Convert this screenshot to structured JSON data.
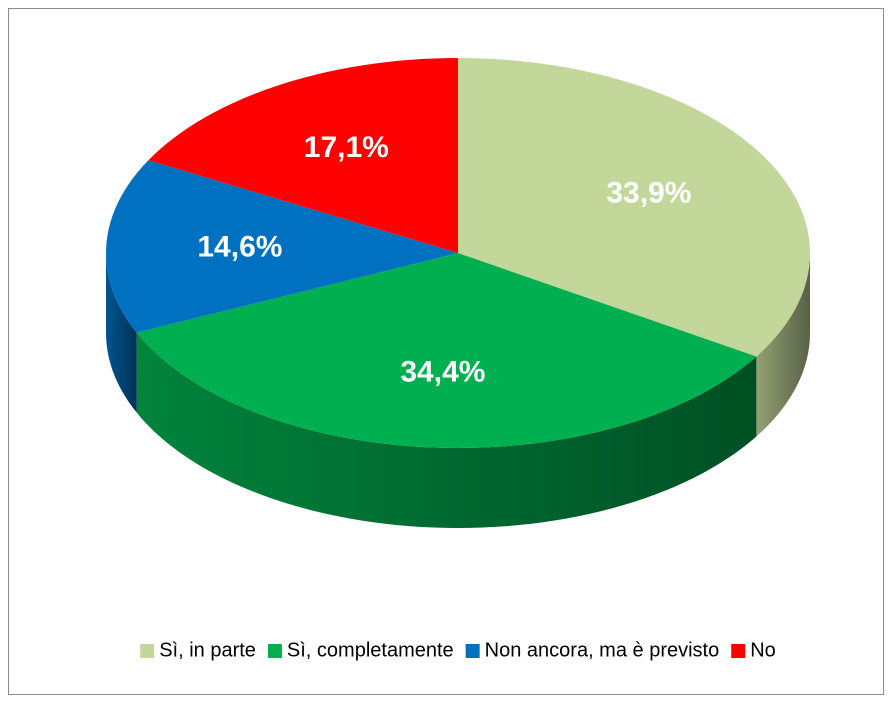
{
  "chart_data": {
    "type": "pie",
    "categories": [
      "Sì, in parte",
      "Sì, completamente",
      "Non ancora, ma è previsto",
      "No"
    ],
    "values": [
      33.9,
      34.4,
      14.6,
      17.1
    ],
    "value_labels": [
      "33,9%",
      "34,4%",
      "14,6%",
      "17,1%"
    ],
    "colors": [
      "#c4d79b",
      "#00b050",
      "#0070c0",
      "#ff0000"
    ],
    "legend": "bottom"
  }
}
